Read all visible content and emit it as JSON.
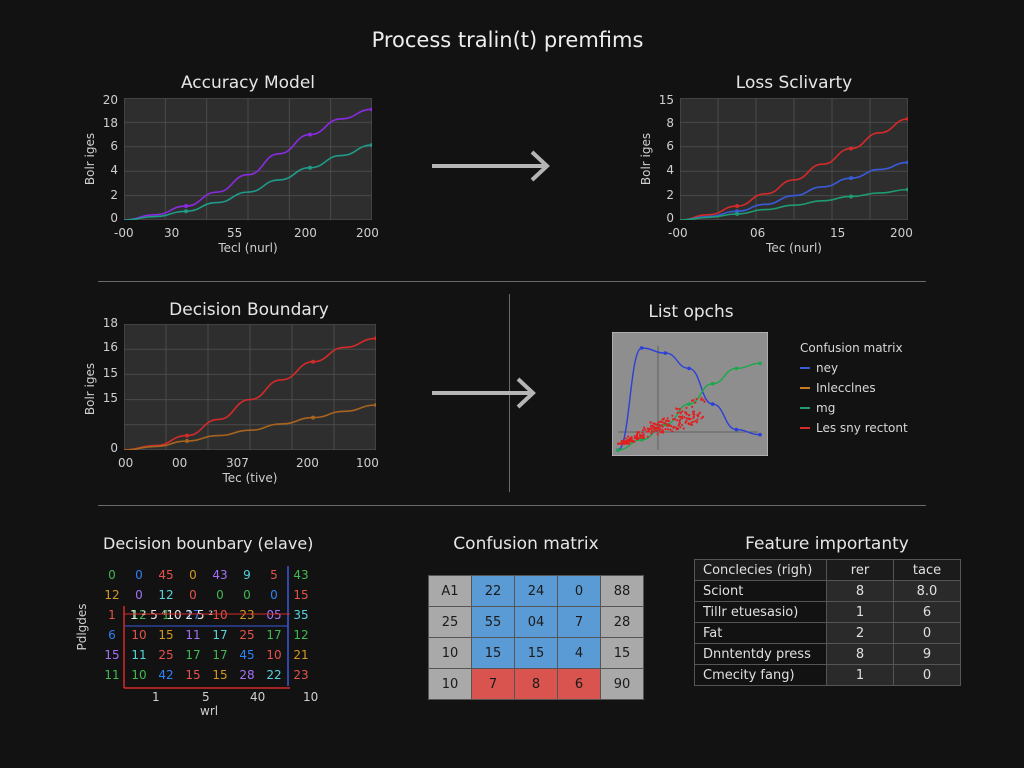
{
  "page_title": "Process tralin(t) premfims",
  "panels": {
    "accuracy": {
      "title": "Accuracy Model",
      "ylabel": "Bolr iges",
      "xlabel": "Tecl (nurl)",
      "yticks": [
        "20",
        "18",
        "6",
        "4",
        "2",
        "0"
      ],
      "xticks": [
        "-00",
        "30",
        "55",
        "200",
        "200"
      ]
    },
    "loss": {
      "title": "Loss Sclivarty",
      "ylabel": "Bolr iges",
      "xlabel": "Tec (nurl)",
      "yticks": [
        "15",
        "8",
        "6",
        "4",
        "2",
        "0"
      ],
      "xticks": [
        "-00",
        "06",
        "15",
        "200"
      ]
    },
    "decision": {
      "title": "Decision Boundary",
      "ylabel": "Bolr iges",
      "xlabel": "Tec (tive)",
      "yticks": [
        "18",
        "16",
        "15",
        "15",
        "0"
      ],
      "xticks": [
        "00",
        "00",
        "307",
        "200",
        "100"
      ]
    },
    "scatter": {
      "title": "List opchs",
      "legend_title": "Confusion matrix",
      "legend": [
        {
          "label": "ney",
          "color": "#3a5bd9"
        },
        {
          "label": "Inlecclnes",
          "color": "#c87a1e"
        },
        {
          "label": "mg",
          "color": "#1f9b74"
        },
        {
          "label": "Les sny rectont",
          "color": "#d42a2a"
        }
      ]
    },
    "grid": {
      "title": "Decision bounbary (elave)",
      "ylabel": "Pdlgdes",
      "xlabel": "wrl",
      "xticks": [
        "1",
        "5",
        "40",
        "10"
      ],
      "rows": [
        [
          "0",
          "0",
          "45",
          "0",
          "43",
          "9",
          "5",
          "43"
        ],
        [
          "12",
          "0",
          "12",
          "0",
          "0",
          "0",
          "0",
          "15"
        ],
        [
          "1",
          "12",
          "1",
          "17",
          "10",
          "23",
          "05",
          "35"
        ],
        [
          "6",
          "10",
          "15",
          "11",
          "17",
          "25",
          "17",
          "12"
        ],
        [
          "15",
          "11",
          "25",
          "17",
          "17",
          "45",
          "10",
          "21"
        ],
        [
          "11",
          "10",
          "42",
          "15",
          "15",
          "28",
          "22",
          "23"
        ]
      ],
      "overlay": "1 ² 5  ⁴10  2  5  ²"
    },
    "confusion": {
      "title": "Confusion matrix",
      "rows": [
        [
          "A1",
          "22",
          "24",
          "0",
          "88"
        ],
        [
          "25",
          "55",
          "04",
          "7",
          "28"
        ],
        [
          "10",
          "15",
          "15",
          "4",
          "15"
        ],
        [
          "10",
          "7",
          "8",
          "6",
          "90"
        ]
      ]
    },
    "features": {
      "title": "Feature importanty",
      "header": [
        "Conclecies (righ)",
        "rer",
        "tace"
      ],
      "rows": [
        [
          "Sciont",
          "8",
          "8.0"
        ],
        [
          "Tillr etuesasio)",
          "1",
          "6"
        ],
        [
          "Fat",
          "2",
          "0"
        ],
        [
          "Dnntentdy press",
          "8",
          "9"
        ],
        [
          "Cmecity fang)",
          "1",
          "0"
        ]
      ]
    }
  },
  "chart_data": [
    {
      "type": "line",
      "title": "Accuracy Model",
      "xlabel": "Tecl (nurl)",
      "ylabel": "Bolr iges",
      "x": [
        0,
        1,
        2,
        3,
        4,
        5,
        6,
        7,
        8
      ],
      "series": [
        {
          "color": "#8a2be2",
          "values": [
            0,
            0.6,
            1.6,
            3.2,
            5.2,
            7.6,
            9.8,
            11.6,
            12.7
          ]
        },
        {
          "color": "#1f9b8a",
          "values": [
            0,
            0.4,
            1.0,
            2.0,
            3.2,
            4.6,
            6.0,
            7.4,
            8.6
          ]
        }
      ],
      "ylim": [
        0,
        14
      ]
    },
    {
      "type": "line",
      "title": "Loss Sclivarty",
      "xlabel": "Tec (nurl)",
      "ylabel": "Bolr iges",
      "x": [
        0,
        1,
        2,
        3,
        4,
        5,
        6,
        7,
        8
      ],
      "series": [
        {
          "color": "#d42a2a",
          "values": [
            0,
            0.6,
            1.6,
            3.0,
            4.6,
            6.4,
            8.2,
            10.0,
            11.6
          ]
        },
        {
          "color": "#3a5bd9",
          "values": [
            0,
            0.4,
            1.0,
            1.8,
            2.8,
            3.8,
            4.8,
            5.8,
            6.6
          ]
        },
        {
          "color": "#1f9b74",
          "values": [
            0,
            0.3,
            0.7,
            1.2,
            1.7,
            2.2,
            2.7,
            3.1,
            3.5
          ]
        }
      ],
      "ylim": [
        0,
        14
      ]
    },
    {
      "type": "line",
      "title": "Decision Boundary",
      "xlabel": "Tec (tive)",
      "ylabel": "Bolr iges",
      "x": [
        0,
        1,
        2,
        3,
        4,
        5,
        6,
        7,
        8
      ],
      "series": [
        {
          "color": "#d42a2a",
          "values": [
            0,
            0.5,
            1.6,
            3.4,
            5.6,
            7.8,
            9.8,
            11.4,
            12.4
          ]
        },
        {
          "color": "#a8641f",
          "values": [
            0,
            0.4,
            1.0,
            1.6,
            2.2,
            2.9,
            3.6,
            4.3,
            5.0
          ]
        }
      ],
      "ylim": [
        0,
        14
      ]
    },
    {
      "type": "line",
      "title": "List opchs",
      "x": [
        0,
        1,
        2,
        3,
        4,
        5,
        6
      ],
      "series": [
        {
          "color": "#2b3fd9",
          "values": [
            0.0,
            1.0,
            0.95,
            0.8,
            0.45,
            0.2,
            0.15
          ]
        },
        {
          "color": "#19a84a",
          "values": [
            0.0,
            0.1,
            0.25,
            0.45,
            0.65,
            0.8,
            0.85
          ]
        }
      ],
      "ylim": [
        0,
        1
      ]
    }
  ],
  "colors": {
    "background": "#121212",
    "plot_bg": "#2e2e2e",
    "cm_blue": "#5b9bd5",
    "cm_red": "#d9534f",
    "cm_grey": "#a9a9a9"
  }
}
